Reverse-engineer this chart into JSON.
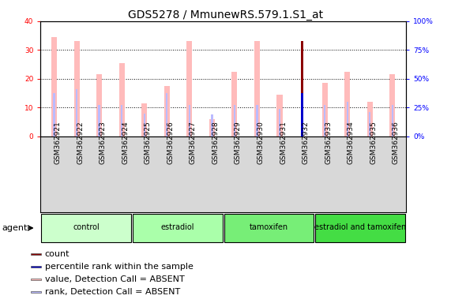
{
  "title": "GDS5278 / MmunewRS.579.1.S1_at",
  "samples": [
    "GSM362921",
    "GSM362922",
    "GSM362923",
    "GSM362924",
    "GSM362925",
    "GSM362926",
    "GSM362927",
    "GSM362928",
    "GSM362929",
    "GSM362930",
    "GSM362931",
    "GSM362932",
    "GSM362933",
    "GSM362934",
    "GSM362935",
    "GSM362936"
  ],
  "groups": [
    {
      "name": "control",
      "samples": [
        0,
        1,
        2,
        3
      ],
      "color": "#ccffcc"
    },
    {
      "name": "estradiol",
      "samples": [
        4,
        5,
        6,
        7
      ],
      "color": "#aaffaa"
    },
    {
      "name": "tamoxifen",
      "samples": [
        8,
        9,
        10,
        11
      ],
      "color": "#77ee77"
    },
    {
      "name": "estradiol and tamoxifen",
      "samples": [
        12,
        13,
        14,
        15
      ],
      "color": "#44dd44"
    }
  ],
  "values": [
    34.5,
    33.0,
    21.5,
    25.5,
    11.5,
    17.5,
    33.0,
    6.0,
    22.5,
    33.0,
    14.5,
    33.0,
    18.5,
    22.5,
    12.0,
    21.5
  ],
  "ranks_pct": [
    37.5,
    41.25,
    27.5,
    27.5,
    20.0,
    37.5,
    27.5,
    18.75,
    27.5,
    27.5,
    23.75,
    37.5,
    27.5,
    30.0,
    21.25,
    27.5
  ],
  "value_absent": [
    true,
    true,
    true,
    true,
    true,
    true,
    true,
    true,
    true,
    true,
    true,
    false,
    true,
    true,
    true,
    true
  ],
  "rank_absent": [
    true,
    true,
    true,
    true,
    true,
    true,
    true,
    true,
    true,
    true,
    true,
    false,
    true,
    true,
    true,
    true
  ],
  "special_idx": 11,
  "ylim_left": [
    0,
    40
  ],
  "ylim_right": [
    0,
    100
  ],
  "yticks_left": [
    0,
    10,
    20,
    30,
    40
  ],
  "yticks_right": [
    0,
    25,
    50,
    75,
    100
  ],
  "ytick_labels_right": [
    "0%",
    "25%",
    "50%",
    "75%",
    "100%"
  ],
  "value_color_absent": "#ffbbbb",
  "rank_color_absent": "#bbbbff",
  "count_color": "#8b0000",
  "rank_color": "#0000cc",
  "bg_color": "#ffffff",
  "grid_color": "black",
  "title_fontsize": 10,
  "tick_fontsize": 6.5,
  "legend_fontsize": 8,
  "value_bar_width": 0.25,
  "rank_bar_width": 0.08,
  "count_bar_width": 0.12,
  "rank_dot_size": 0.08
}
